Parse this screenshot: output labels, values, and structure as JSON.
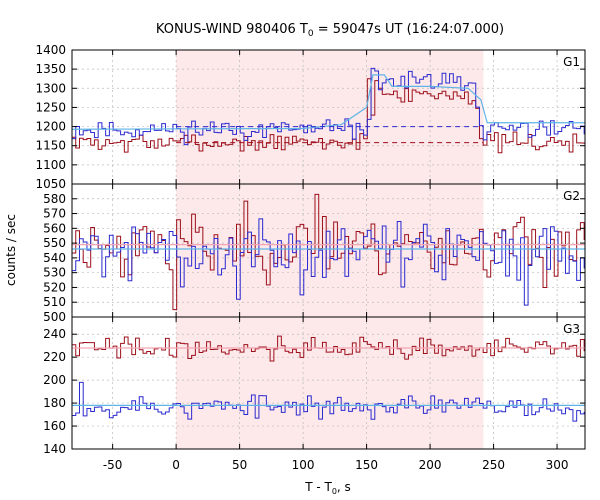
{
  "chart_data": {
    "type": "line",
    "title_prefix": "KONUS-WIND 980406 T",
    "title_sub": "0",
    "title_suffix": " = 59047s UT (16:24:07.000)",
    "ylabel": "counts / sec",
    "xlabel_prefix": "T - T",
    "xlabel_sub": "0",
    "xlabel_suffix": ", s",
    "xlim": [
      -82,
      322
    ],
    "xticks": [
      -50,
      0,
      50,
      100,
      150,
      200,
      250,
      300
    ],
    "shaded_interval": [
      0,
      242
    ],
    "bin_width": 2.944,
    "colors": {
      "series_red": "#9c0f1a",
      "series_blue": "#2a2ad0",
      "fit_light_blue": "#5fb4e6",
      "fit_pink": "#f2a6b4",
      "shade": "#fde8ea",
      "grid": "#bbbbbb",
      "frame": "#000000"
    },
    "panels": [
      {
        "name": "G1",
        "ylim": [
          1050,
          1400
        ],
        "yticks": [
          1050,
          1100,
          1150,
          1200,
          1250,
          1300,
          1350,
          1400
        ],
        "series": [
          {
            "color": "#9c0f1a",
            "background": 1158,
            "pulse_start": 150,
            "pulse_end": 242,
            "pulse_peak": 1285,
            "noise": 12,
            "seed": 7,
            "spikes": [
              [
                152,
                1325
              ],
              [
                158,
                1320
              ],
              [
                162,
                1300
              ],
              [
                166,
                1285
              ]
            ]
          },
          {
            "color": "#2a2ad0",
            "background": 1192,
            "pulse_start": 150,
            "pulse_end": 242,
            "pulse_peak": 1315,
            "noise": 13,
            "seed": 11,
            "spikes": [
              [
                155,
                1352
              ],
              [
                158,
                1345
              ],
              [
                197,
                1330
              ],
              [
                216,
                1338
              ],
              [
                222,
                1330
              ]
            ]
          }
        ],
        "fits": [
          {
            "color": "#5fb4e6",
            "points": [
              [
                -82,
                1193
              ],
              [
                100,
                1195
              ],
              [
                130,
                1205
              ],
              [
                150,
                1250
              ],
              [
                155,
                1335
              ],
              [
                164,
                1335
              ],
              [
                170,
                1305
              ],
              [
                200,
                1305
              ],
              [
                230,
                1300
              ],
              [
                240,
                1270
              ],
              [
                245,
                1210
              ],
              [
                322,
                1210
              ]
            ]
          }
        ],
        "background_lines": [
          {
            "color": "#2a2ad0",
            "y": 1200,
            "x_from": 0,
            "x_to": 242
          },
          {
            "color": "#9c0f1a",
            "y": 1158,
            "x_from": 0,
            "x_to": 242
          }
        ]
      },
      {
        "name": "G2",
        "ylim": [
          500,
          590
        ],
        "yticks": [
          500,
          510,
          520,
          530,
          540,
          550,
          560,
          570,
          580
        ],
        "series": [
          {
            "color": "#9c0f1a",
            "background": 549,
            "noise": 11,
            "seed": 23,
            "spikes": [
              [
                112,
                583
              ],
              [
                -5,
                532
              ],
              [
                0,
                505
              ]
            ]
          },
          {
            "color": "#2a2ad0",
            "background": 545,
            "noise": 10,
            "seed": 31,
            "spikes": [
              [
                48,
                512
              ],
              [
                100,
                515
              ],
              [
                275,
                508
              ]
            ]
          }
        ],
        "fits": [
          {
            "color": "#5fb4e6",
            "points": [
              [
                -82,
                546
              ],
              [
                322,
                546
              ]
            ]
          },
          {
            "color": "#f2a6b4",
            "points": [
              [
                -82,
                549
              ],
              [
                322,
                549
              ]
            ]
          }
        ],
        "background_lines": []
      },
      {
        "name": "G3",
        "ylim": [
          140,
          255
        ],
        "yticks": [
          140,
          160,
          180,
          200,
          220,
          240
        ],
        "series": [
          {
            "color": "#9c0f1a",
            "background": 228,
            "noise": 5,
            "seed": 41,
            "spikes": []
          },
          {
            "color": "#2a2ad0",
            "background": 177,
            "noise": 5,
            "seed": 53,
            "spikes": [
              [
                -75,
                198
              ],
              [
                10,
                166
              ]
            ]
          }
        ],
        "fits": [
          {
            "color": "#5fb4e6",
            "points": [
              [
                -82,
                178
              ],
              [
                322,
                178
              ]
            ]
          },
          {
            "color": "#f2a6b4",
            "points": [
              [
                -82,
                228
              ],
              [
                322,
                228
              ]
            ]
          }
        ],
        "background_lines": []
      }
    ]
  }
}
